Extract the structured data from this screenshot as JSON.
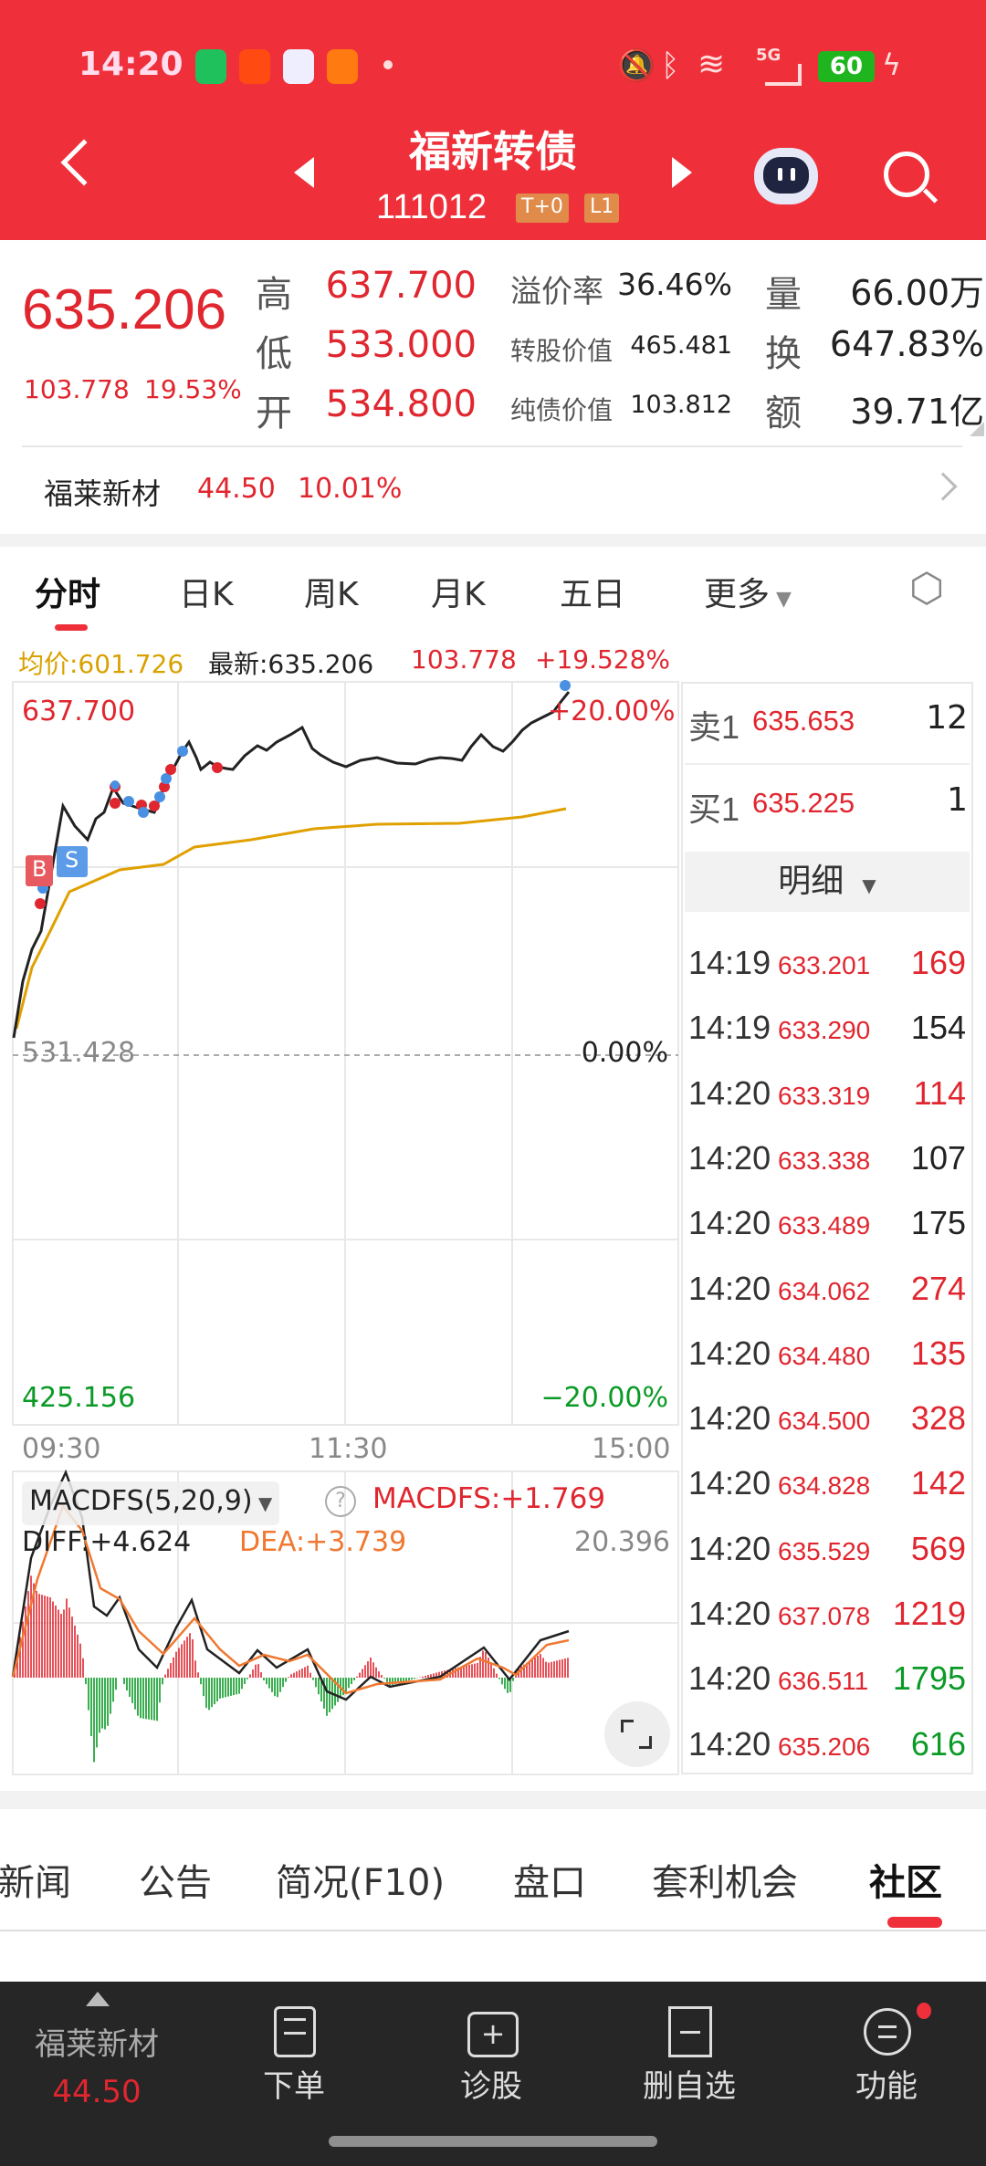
{
  "status_bar": {
    "time": "14:20",
    "battery": "60",
    "network": "5G"
  },
  "header": {
    "title": "福新转债",
    "code": "111012",
    "badges": [
      "T+0",
      "L1"
    ]
  },
  "quote": {
    "price": "635.206",
    "change": "103.778",
    "change_pct": "19.53%",
    "rows": [
      {
        "l1": "高",
        "v1": "637.700",
        "l2": "溢价率",
        "v2": "36.46%",
        "l3": "量",
        "v3": "66.00万"
      },
      {
        "l1": "低",
        "v1": "533.000",
        "l2": "转股价值",
        "v2": "465.481",
        "l3": "换",
        "v3": "647.83%"
      },
      {
        "l1": "开",
        "v1": "534.800",
        "l2": "纯债价值",
        "v2": "103.812",
        "l3": "额",
        "v3": "39.71亿"
      }
    ]
  },
  "related": {
    "name": "福莱新材",
    "price": "44.50",
    "pct": "10.01%"
  },
  "chart_tabs": [
    "分时",
    "日K",
    "周K",
    "月K",
    "五日",
    "更多"
  ],
  "info_line": {
    "avg": "均价:601.726",
    "latest": "最新:635.206",
    "change": "103.778",
    "pct": "+19.528%"
  },
  "chart": {
    "top_price": "637.700",
    "top_pct": "+20.00%",
    "mid_price": "531.428",
    "mid_pct": "0.00%",
    "bottom_price": "425.156",
    "bottom_pct": "−20.00%",
    "times": [
      "09:30",
      "11:30",
      "15:00"
    ],
    "markers": [
      "B",
      "S"
    ],
    "colors": {
      "price": "#222222",
      "avg": "#e0a000",
      "up": "#e0262f",
      "down": "#0a9a25"
    }
  },
  "macd": {
    "selector": "MACDFS(5,20,9)",
    "value": "MACDFS:+1.769",
    "max": "20.396",
    "diff": "DIFF:+4.624",
    "dea": "DEA:+3.739"
  },
  "orderbook": {
    "sell": {
      "label": "卖1",
      "price": "635.653",
      "vol": "12"
    },
    "buy": {
      "label": "买1",
      "price": "635.225",
      "vol": "1"
    },
    "detail_label": "明细",
    "trades": [
      {
        "t": "14:19",
        "p": "633.201",
        "v": "169",
        "c": "red"
      },
      {
        "t": "14:19",
        "p": "633.290",
        "v": "154",
        "c": "dark"
      },
      {
        "t": "14:20",
        "p": "633.319",
        "v": "114",
        "c": "red"
      },
      {
        "t": "14:20",
        "p": "633.338",
        "v": "107",
        "c": "dark"
      },
      {
        "t": "14:20",
        "p": "633.489",
        "v": "175",
        "c": "dark"
      },
      {
        "t": "14:20",
        "p": "634.062",
        "v": "274",
        "c": "red"
      },
      {
        "t": "14:20",
        "p": "634.480",
        "v": "135",
        "c": "red"
      },
      {
        "t": "14:20",
        "p": "634.500",
        "v": "328",
        "c": "red"
      },
      {
        "t": "14:20",
        "p": "634.828",
        "v": "142",
        "c": "red"
      },
      {
        "t": "14:20",
        "p": "635.529",
        "v": "569",
        "c": "red"
      },
      {
        "t": "14:20",
        "p": "637.078",
        "v": "1219",
        "c": "red"
      },
      {
        "t": "14:20",
        "p": "636.511",
        "v": "1795",
        "c": "green"
      },
      {
        "t": "14:20",
        "p": "635.206",
        "v": "616",
        "c": "green"
      }
    ]
  },
  "bottom_tabs": [
    "新闻",
    "公告",
    "简况(F10)",
    "盘口",
    "套利机会",
    "社区"
  ],
  "bottom_nav": {
    "stock_name": "福莱新材",
    "stock_price": "44.50",
    "items": [
      "下单",
      "诊股",
      "删自选",
      "功能"
    ]
  }
}
